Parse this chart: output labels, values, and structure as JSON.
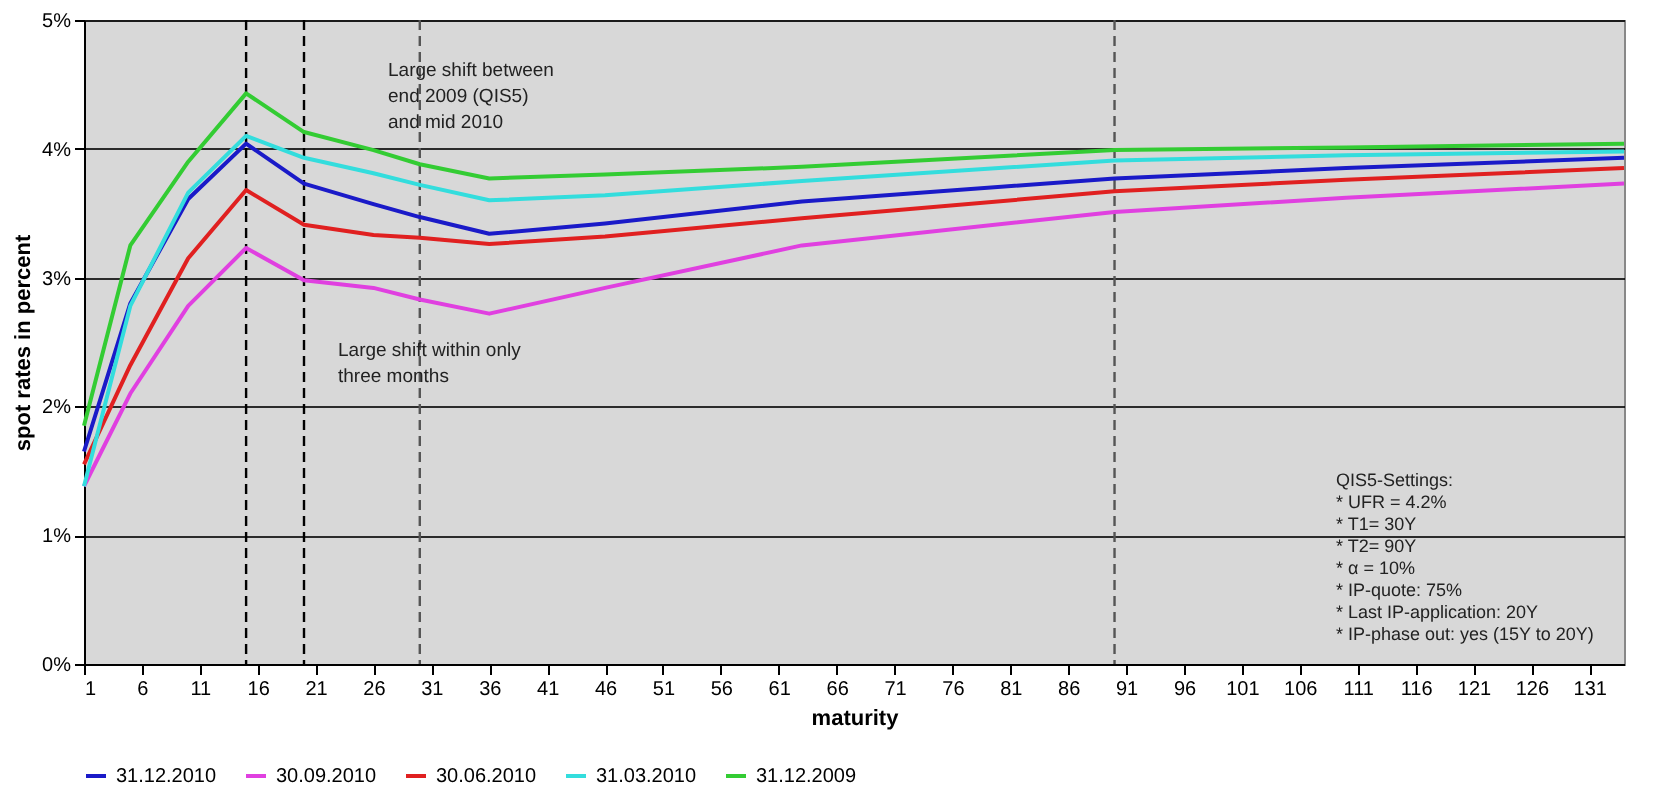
{
  "chart_data": {
    "type": "line",
    "xlabel": "maturity",
    "ylabel": "spot rates in percent",
    "x": [
      1,
      5,
      10,
      15,
      20,
      26,
      30,
      36,
      46,
      63,
      90,
      110,
      134
    ],
    "series": [
      {
        "name": "31.12.2010",
        "color": "#1a1ac8",
        "values": [
          1.65,
          2.8,
          3.61,
          4.04,
          3.73,
          3.57,
          3.47,
          3.34,
          3.42,
          3.59,
          3.77,
          3.85,
          3.93
        ]
      },
      {
        "name": "30.09.2010",
        "color": "#e040e0",
        "values": [
          1.38,
          2.1,
          2.78,
          3.23,
          2.98,
          2.92,
          2.83,
          2.72,
          2.92,
          3.25,
          3.51,
          3.62,
          3.73
        ]
      },
      {
        "name": "30.06.2010",
        "color": "#e02020",
        "values": [
          1.55,
          2.32,
          3.15,
          3.68,
          3.41,
          3.33,
          3.31,
          3.26,
          3.32,
          3.46,
          3.67,
          3.76,
          3.85
        ]
      },
      {
        "name": "31.03.2010",
        "color": "#33dddd",
        "values": [
          1.38,
          2.78,
          3.66,
          4.1,
          3.93,
          3.81,
          3.72,
          3.6,
          3.64,
          3.75,
          3.91,
          3.95,
          3.98
        ]
      },
      {
        "name": "31.12.2009",
        "color": "#33cc33",
        "values": [
          1.85,
          3.25,
          3.9,
          4.43,
          4.13,
          3.99,
          3.88,
          3.77,
          3.8,
          3.86,
          3.99,
          4.01,
          4.04
        ]
      }
    ],
    "xlim": [
      1,
      134
    ],
    "xticks": [
      1,
      6,
      11,
      16,
      21,
      26,
      31,
      36,
      41,
      46,
      51,
      56,
      61,
      66,
      71,
      76,
      81,
      86,
      91,
      96,
      101,
      106,
      111,
      116,
      121,
      126,
      131
    ],
    "ylim": [
      0,
      5
    ],
    "yticks": [
      {
        "value": 0,
        "label": "0%"
      },
      {
        "value": 1,
        "label": "1%"
      },
      {
        "value": 2,
        "label": "2%"
      },
      {
        "value": 3,
        "label": "3%"
      },
      {
        "value": 4,
        "label": "4%"
      },
      {
        "value": 5,
        "label": "5%"
      }
    ],
    "ref_lines": [
      {
        "axis": "x",
        "value": 15,
        "color": "#000000",
        "line_style": "dashed"
      },
      {
        "axis": "x",
        "value": 20,
        "color": "#000000",
        "line_style": "dashed"
      },
      {
        "axis": "x",
        "value": 30,
        "color": "#555555",
        "line_style": "dashed"
      },
      {
        "axis": "x",
        "value": 90,
        "color": "#555555",
        "line_style": "dashed"
      }
    ],
    "annotations": [
      "Large shift between\nend 2009 (QIS5)\nand mid 2010",
      "Large shift within only\nthree months",
      "QIS5-Settings:\n* UFR = 4.2%\n* T1= 30Y\n* T2= 90Y\n* α = 10%\n* IP-quote: 75%\n* Last IP-application: 20Y\n* IP-phase out: yes (15Y to 20Y)"
    ],
    "grid": "y",
    "legend": "bottom",
    "line_style": "solid",
    "marker": "none"
  }
}
